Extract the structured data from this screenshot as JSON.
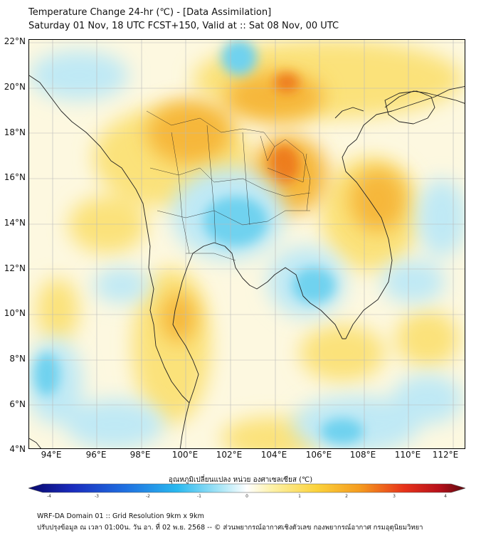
{
  "header": {
    "title_line1": "Temperature Change 24-hr (℃) - [Data Assimilation]",
    "title_line2": "Saturday 01 Nov, 18 UTC FCST+150, Valid at :: Sat 08 Nov, 00 UTC"
  },
  "map": {
    "lat_labels": [
      "22°N",
      "20°N",
      "18°N",
      "16°N",
      "14°N",
      "12°N",
      "10°N",
      "8°N",
      "6°N",
      "4°N"
    ],
    "lon_labels": [
      "94°E",
      "96°E",
      "98°E",
      "100°E",
      "102°E",
      "104°E",
      "106°E",
      "108°E",
      "110°E",
      "112°E"
    ],
    "colors": {
      "neutral": "#fdf8e0",
      "warm_light": "#fbe27a",
      "warm": "#f6b73a",
      "hot": "#ee7d1e",
      "cool": "#bfe9f5",
      "cold": "#6fd2ef",
      "border": "#222222"
    }
  },
  "colorbar": {
    "label": "อุณหภูมิเปลี่ยนแปลง หน่วย องศาเซลเซียส (℃)",
    "ticks": [
      "-4",
      "-3",
      "-2",
      "-1",
      "0",
      "1",
      "2",
      "3",
      "4"
    ],
    "min": -4,
    "max": 4
  },
  "footer": {
    "line1": "WRF-DA Domain 01 :: Grid Resolution 9km x 9km",
    "line2": "ปรับปรุงข้อมูล ณ เวลา 01:00น. วัน อา. ที่ 02 พ.ย. 2568 -- © ส่วนพยากรณ์อากาศเชิงตัวเลข กองพยากรณ์อากาศ กรมอุตุนิยมวิทยา"
  }
}
